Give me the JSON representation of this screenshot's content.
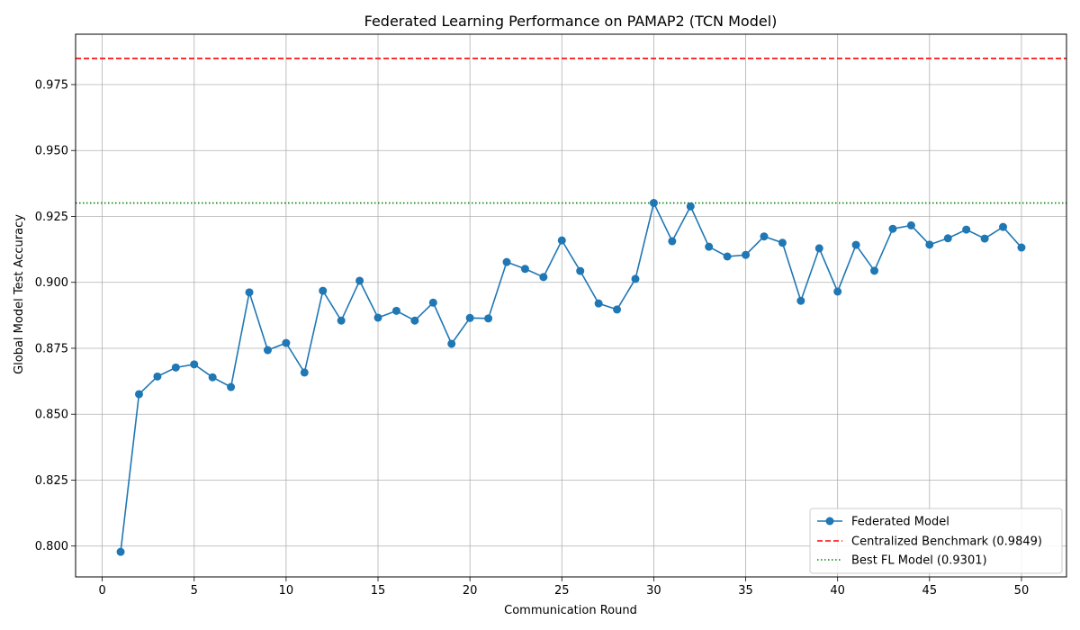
{
  "chart_data": {
    "type": "line",
    "title": "Federated Learning Performance on PAMAP2 (TCN Model)",
    "xlabel": "Communication Round",
    "ylabel": "Global Model Test Accuracy",
    "xlim": [
      -1.45,
      52.45
    ],
    "ylim": [
      0.7883,
      0.9941
    ],
    "xticks": [
      0,
      5,
      10,
      15,
      20,
      25,
      30,
      35,
      40,
      45,
      50
    ],
    "yticks": [
      0.8,
      0.825,
      0.85,
      0.875,
      0.9,
      0.925,
      0.95,
      0.975
    ],
    "ytick_labels": [
      "0.800",
      "0.825",
      "0.850",
      "0.875",
      "0.900",
      "0.925",
      "0.950",
      "0.975"
    ],
    "grid": true,
    "legend_position": "lower-right",
    "series": [
      {
        "name": "Federated Model",
        "color": "#1f77b4",
        "style": "solid-line-with-circle-markers",
        "x": [
          1,
          2,
          3,
          4,
          5,
          6,
          7,
          8,
          9,
          10,
          11,
          12,
          13,
          14,
          15,
          16,
          17,
          18,
          19,
          20,
          21,
          22,
          23,
          24,
          25,
          26,
          27,
          28,
          29,
          30,
          31,
          32,
          33,
          34,
          35,
          36,
          37,
          38,
          39,
          40,
          41,
          42,
          43,
          44,
          45,
          46,
          47,
          48,
          49,
          50
        ],
        "y": [
          0.7978,
          0.8576,
          0.8643,
          0.8677,
          0.8689,
          0.864,
          0.8603,
          0.8962,
          0.8743,
          0.877,
          0.8658,
          0.8968,
          0.8855,
          0.9006,
          0.8866,
          0.8892,
          0.8855,
          0.8923,
          0.8767,
          0.8865,
          0.8863,
          0.9077,
          0.9051,
          0.902,
          0.9159,
          0.9043,
          0.892,
          0.8897,
          0.9013,
          0.9301,
          0.9156,
          0.9288,
          0.9135,
          0.9098,
          0.9104,
          0.9174,
          0.915,
          0.893,
          0.9129,
          0.8965,
          0.9142,
          0.9044,
          0.9203,
          0.9216,
          0.9143,
          0.9167,
          0.92,
          0.9166,
          0.921,
          0.9132
        ]
      }
    ],
    "reference_lines": [
      {
        "name": "Centralized Benchmark (0.9849)",
        "value": 0.9849,
        "color": "#ff0000",
        "style": "dashed"
      },
      {
        "name": "Best FL Model (0.9301)",
        "value": 0.9301,
        "color": "#008000",
        "style": "dotted"
      }
    ]
  }
}
